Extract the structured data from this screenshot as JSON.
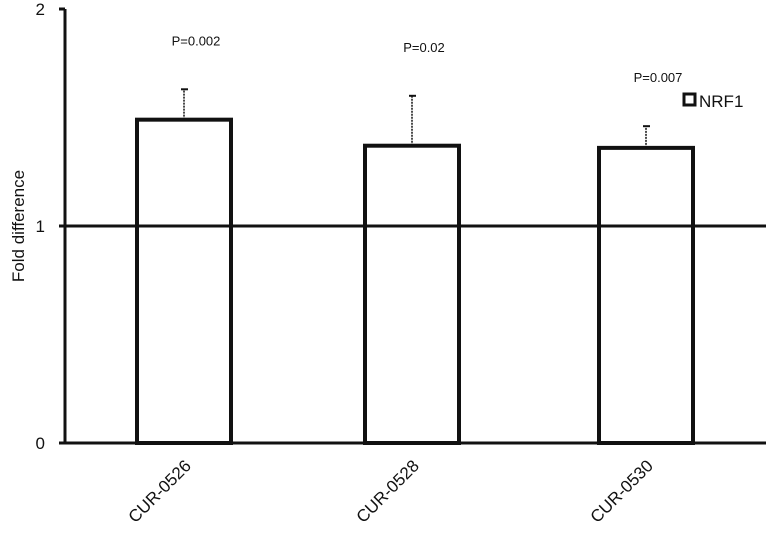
{
  "chart_data": {
    "type": "bar",
    "categories": [
      "CUR-0526",
      "CUR-0528",
      "CUR-0530"
    ],
    "series": [
      {
        "name": "NRF1",
        "values": [
          1.49,
          1.37,
          1.36
        ],
        "error_plus": [
          0.14,
          0.23,
          0.1
        ]
      }
    ],
    "annotations": [
      "P=0.002",
      "P=0.02",
      "P=0.007"
    ],
    "reference_line": 1,
    "ylabel": "Fold difference",
    "xlabel": "",
    "ylim": [
      0,
      2
    ],
    "yticks": [
      0,
      1,
      2
    ],
    "legend_position": "right",
    "grid": false,
    "colors": {
      "bar_fill": "#ffffff",
      "stroke": "#111111"
    }
  }
}
